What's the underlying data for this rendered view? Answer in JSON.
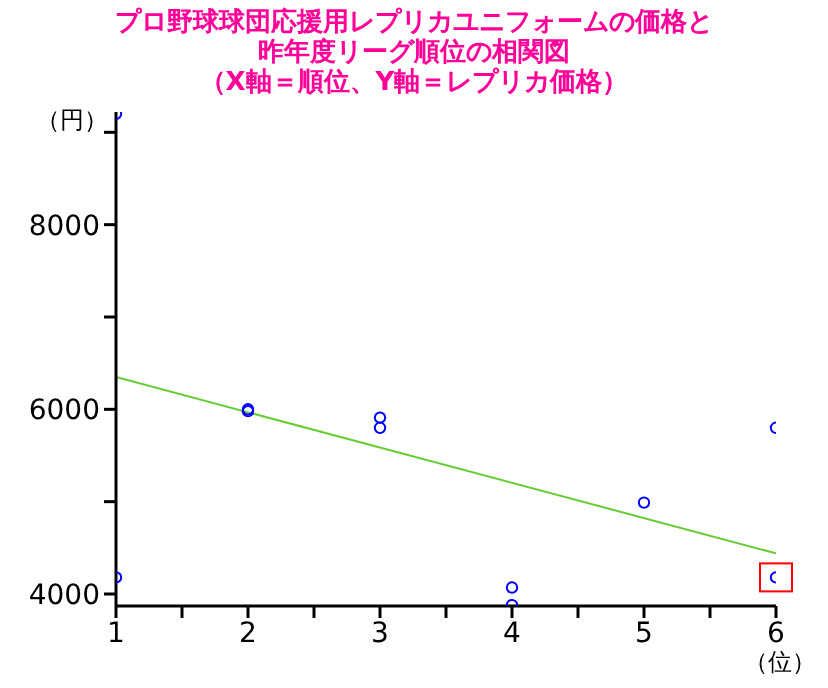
{
  "chart_data": {
    "type": "scatter",
    "title": "プロ野球球団応援用レプリカユニフォームの価格と昨年度リーグ順位の相関図",
    "subtitle": "（X軸＝順位、Y軸＝レプリカ価格）",
    "xlabel": "（位）",
    "ylabel": "（円）",
    "xlim": [
      1,
      6
    ],
    "xticks": [
      1,
      {
        "value": 1.5,
        "label": null
      },
      2,
      {
        "value": 2.5,
        "label": null
      },
      3,
      {
        "value": 3.5,
        "label": null
      },
      4,
      {
        "value": 4.5,
        "label": null
      },
      5,
      {
        "value": 5.5,
        "label": null
      },
      6
    ],
    "ylim": [
      3870,
      9220
    ],
    "yticks": [
      4000,
      {
        "value": 5000,
        "label": null
      },
      6000,
      {
        "value": 7000,
        "label": null
      },
      8000,
      {
        "value": 9000,
        "label": null
      }
    ],
    "grid": false,
    "marker": "circle",
    "series": [
      {
        "color": "#0000ff",
        "x": [
          1,
          1,
          2,
          2,
          3,
          3,
          4,
          4,
          5,
          6,
          6
        ],
        "values": [
          9200,
          4180,
          6000,
          5980,
          5910,
          5800,
          4070,
          3880,
          4990,
          5800,
          4180
        ]
      },
      {
        "type": "line",
        "color": "#66cc33",
        "x": [
          1,
          6
        ],
        "values": [
          6350,
          4440
        ],
        "marker": "none"
      }
    ]
  }
}
